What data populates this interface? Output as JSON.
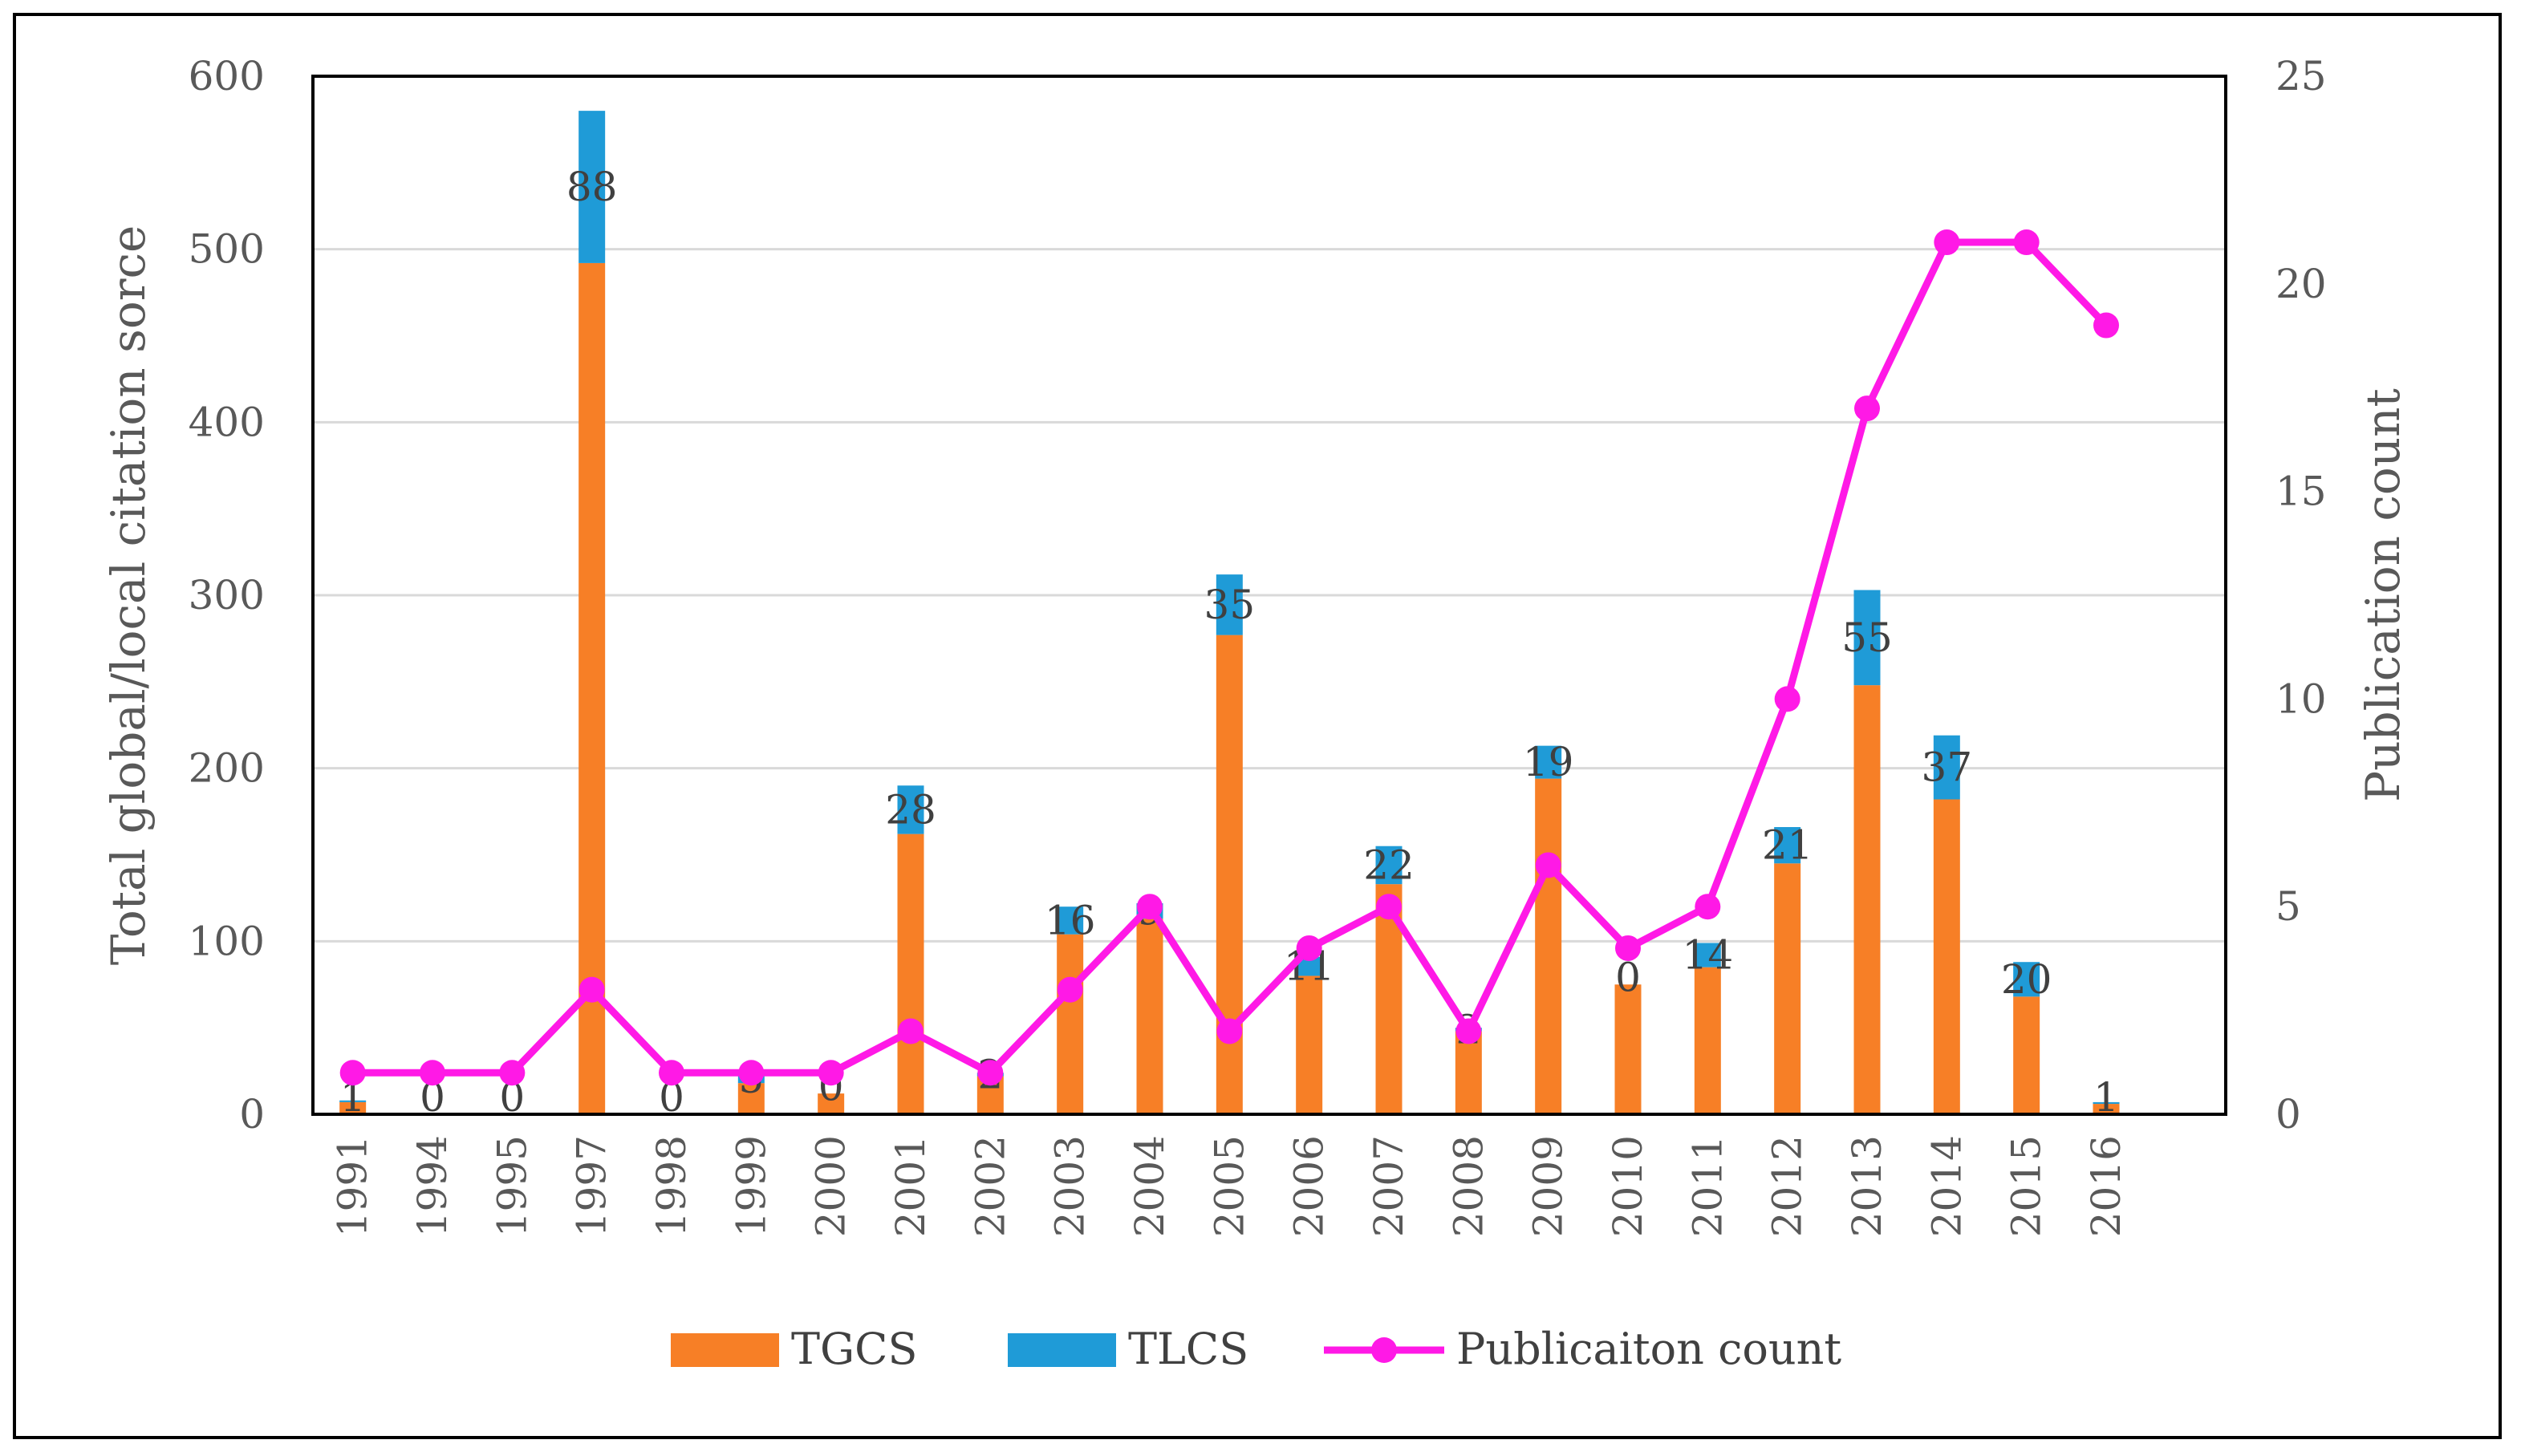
{
  "chart_data": {
    "type": "bar",
    "stacked": true,
    "categories": [
      "1991",
      "1994",
      "1995",
      "1997",
      "1998",
      "1999",
      "2000",
      "2001",
      "2002",
      "2003",
      "2004",
      "2005",
      "2006",
      "2007",
      "2008",
      "2009",
      "2010",
      "2011",
      "2012",
      "2013",
      "2014",
      "2015",
      "2016"
    ],
    "series": [
      {
        "name": "TGCS",
        "type": "bar",
        "color": "#F77F26",
        "axis": "left",
        "values": [
          7,
          0,
          0,
          492,
          0,
          18,
          12,
          162,
          22,
          104,
          113,
          277,
          80,
          133,
          48,
          194,
          75,
          85,
          145,
          248,
          182,
          68,
          6
        ]
      },
      {
        "name": "TLCS",
        "type": "bar",
        "color": "#1F9BD7",
        "axis": "left",
        "values": [
          1,
          0,
          0,
          88,
          0,
          5,
          0,
          28,
          2,
          16,
          9,
          35,
          11,
          22,
          2,
          19,
          0,
          14,
          21,
          55,
          37,
          20,
          1
        ]
      },
      {
        "name": "Publicaiton count",
        "type": "line",
        "color": "#FF19E6",
        "axis": "right",
        "values": [
          1,
          1,
          1,
          3,
          1,
          1,
          1,
          2,
          1,
          3,
          5,
          2,
          4,
          5,
          2,
          6,
          4,
          5,
          10,
          17,
          21,
          21,
          19
        ]
      }
    ],
    "data_labels": [
      "1",
      "0",
      "0",
      "88",
      "0",
      "5",
      "0",
      "28",
      "2",
      "16",
      "9",
      "35",
      "11",
      "22",
      "2",
      "19",
      "0",
      "14",
      "21",
      "55",
      "37",
      "20",
      "1"
    ],
    "ylabel": "Total global/local citation sorce",
    "y2label": "Publication count",
    "ylim": [
      0,
      600
    ],
    "y2lim": [
      0,
      25
    ],
    "yticks": [
      "0",
      "100",
      "200",
      "300",
      "400",
      "500",
      "600"
    ],
    "y2ticks": [
      "0",
      "5",
      "10",
      "15",
      "20",
      "25"
    ],
    "grid": true,
    "legend": [
      "TGCS",
      "TLCS",
      "Publicaiton count"
    ],
    "legend_position": "bottom"
  }
}
